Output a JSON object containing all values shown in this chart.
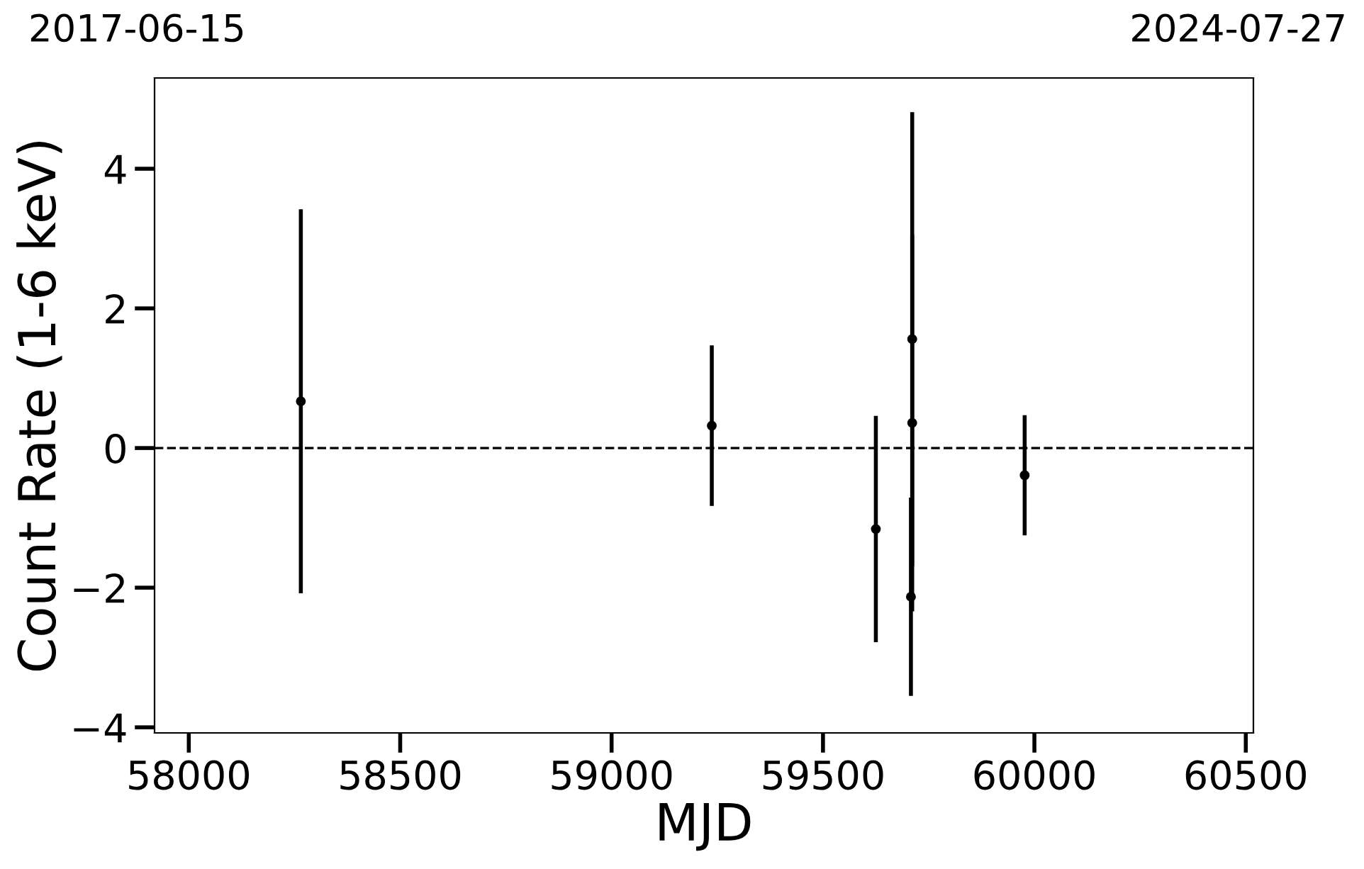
{
  "chart_data": {
    "type": "scatter",
    "xlabel": "MJD",
    "ylabel": "Count Rate (1-6 keV)",
    "x": [
      58265,
      59237,
      59625,
      59711,
      59711,
      59708,
      59977
    ],
    "values": [
      0.67,
      0.32,
      -1.16,
      1.56,
      0.36,
      -2.13,
      -0.39
    ],
    "errors": [
      2.75,
      1.15,
      1.62,
      3.25,
      2.7,
      1.42,
      0.86
    ],
    "color": "#000000",
    "marker": "circle",
    "xlim": [
      57919,
      60518
    ],
    "ylim": [
      -4.08,
      5.3
    ],
    "xticks": [
      58000,
      58500,
      59000,
      59500,
      60000,
      60500
    ],
    "yticks": [
      {
        "value": -4,
        "label": "−4"
      },
      {
        "value": -2,
        "label": "−2"
      },
      0,
      2,
      4
    ],
    "ref_lines": [
      {
        "axis": "y",
        "value": 0,
        "color": "#000000",
        "line_style": "dashed"
      }
    ],
    "annotations": [
      "2017-06-15",
      "2024-07-27"
    ],
    "grid": false
  }
}
